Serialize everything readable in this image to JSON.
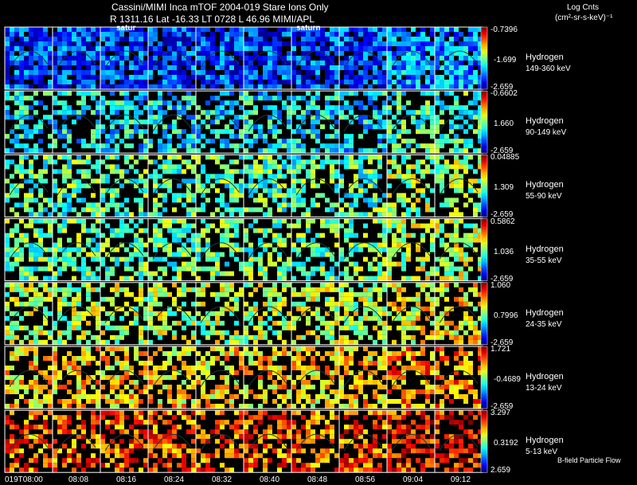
{
  "header": {
    "title_line1": "Cassini/MIMI Inca mTOF  2004-019   Stare   Ions Only",
    "title_line2": "R        1311.16 Lat -16.33 LT 0728 L         46.96  MIMI/APL",
    "units_line1": "Log Cnts",
    "units_line2": "(cm²-sr-s-keV)⁻¹"
  },
  "overlay_labels": [
    "satur",
    "saturn"
  ],
  "time_labels": [
    "019T08:00",
    "08:08",
    "08:16",
    "08:24",
    "08:32",
    "08:40",
    "08:48",
    "08:56",
    "09:04",
    "09:12"
  ],
  "footer_note": "B-field Particle Flow",
  "rows": [
    {
      "species": "Hydrogen",
      "energy": "149-360 keV",
      "cb_max": "-0.7396",
      "cb_mid": "-1.699",
      "cb_min": "-2.659",
      "level": 0.18
    },
    {
      "species": "Hydrogen",
      "energy": "90-149 keV",
      "cb_max": "-0.6602",
      "cb_mid": "1.660",
      "cb_min": "-2.659",
      "level": 0.35
    },
    {
      "species": "Hydrogen",
      "energy": "55-90 keV",
      "cb_max": "0.04885",
      "cb_mid": "1.309",
      "cb_min": "-2.659",
      "level": 0.45
    },
    {
      "species": "Hydrogen",
      "energy": "35-55 keV",
      "cb_max": "0.5862",
      "cb_mid": "1.036",
      "cb_min": "-2.659",
      "level": 0.48
    },
    {
      "species": "Hydrogen",
      "energy": "24-35 keV",
      "cb_max": "1.060",
      "cb_mid": "0.7996",
      "cb_min": "-2.659",
      "level": 0.55
    },
    {
      "species": "Hydrogen",
      "energy": "13-24 keV",
      "cb_max": "1.721",
      "cb_mid": "-0.4689",
      "cb_min": "-2.659",
      "level": 0.66
    },
    {
      "species": "Hydrogen",
      "energy": "5-13 keV",
      "cb_max": "3.297",
      "cb_mid": "0.3192",
      "cb_min": "2.659",
      "level": 0.78
    }
  ]
}
